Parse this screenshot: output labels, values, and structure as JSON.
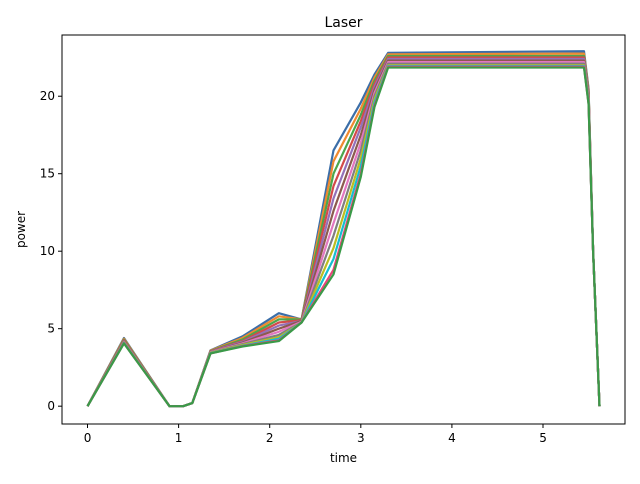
{
  "chart_data": {
    "type": "line",
    "title": "Laser",
    "xlabel": "time",
    "ylabel": "power",
    "xlim": [
      -0.28,
      5.9
    ],
    "ylim": [
      -1.15,
      23.95
    ],
    "xticks": [
      0,
      1,
      2,
      3,
      4,
      5
    ],
    "yticks": [
      0,
      5,
      10,
      15,
      20
    ],
    "grid": false,
    "legend": "none",
    "x": [
      0,
      0.4,
      0.9,
      1.05,
      1.15,
      1.35,
      1.7,
      2.1,
      2.35,
      2.7,
      3.0,
      3.15,
      3.3,
      5.45,
      5.5,
      5.55,
      5.62
    ],
    "series": [
      {
        "color": "#3b6ea8",
        "values": [
          0,
          4.4,
          0,
          0,
          0.2,
          3.6,
          4.5,
          6.0,
          5.6,
          16.5,
          19.6,
          21.4,
          22.8,
          22.9,
          20.5,
          10.0,
          0
        ]
      },
      {
        "color": "#ef8a30",
        "values": [
          0,
          4.35,
          0,
          0,
          0.2,
          3.58,
          4.4,
          5.8,
          5.6,
          15.8,
          19.2,
          21.2,
          22.7,
          22.75,
          20.4,
          10.0,
          0
        ]
      },
      {
        "color": "#4ca64c",
        "values": [
          0,
          4.3,
          0,
          0,
          0.2,
          3.56,
          4.3,
          5.6,
          5.6,
          15.0,
          18.8,
          21.0,
          22.6,
          22.6,
          20.3,
          10.0,
          0
        ]
      },
      {
        "color": "#d34a4a",
        "values": [
          0,
          4.25,
          0,
          0,
          0.2,
          3.54,
          4.2,
          5.4,
          5.55,
          14.2,
          18.4,
          20.8,
          22.5,
          22.5,
          20.2,
          10.0,
          0
        ]
      },
      {
        "color": "#9470b8",
        "values": [
          0,
          4.2,
          0,
          0,
          0.2,
          3.52,
          4.15,
          5.2,
          5.5,
          13.4,
          18.0,
          20.6,
          22.4,
          22.4,
          20.1,
          10.0,
          0
        ]
      },
      {
        "color": "#8c5a4e",
        "values": [
          0,
          4.18,
          0,
          0,
          0.2,
          3.5,
          4.1,
          5.0,
          5.5,
          12.6,
          17.5,
          20.4,
          22.3,
          22.3,
          20.0,
          10.0,
          0
        ]
      },
      {
        "color": "#e277c0",
        "values": [
          0,
          4.15,
          0,
          0,
          0.2,
          3.48,
          4.05,
          4.8,
          5.45,
          11.8,
          17.0,
          20.2,
          22.2,
          22.2,
          19.9,
          10.0,
          0
        ]
      },
      {
        "color": "#7f7f7f",
        "values": [
          0,
          4.12,
          0,
          0,
          0.2,
          3.46,
          4.0,
          4.6,
          5.4,
          11.0,
          16.5,
          20.0,
          22.1,
          22.1,
          19.8,
          10.0,
          0
        ]
      },
      {
        "color": "#bcbd22",
        "values": [
          0,
          4.1,
          0,
          0,
          0.2,
          3.44,
          3.95,
          4.45,
          5.4,
          10.2,
          16.0,
          19.8,
          22.0,
          22.0,
          19.7,
          10.0,
          0
        ]
      },
      {
        "color": "#17becf",
        "values": [
          0,
          4.08,
          0,
          0,
          0.2,
          3.42,
          3.9,
          4.35,
          5.4,
          9.5,
          15.5,
          19.6,
          21.95,
          21.95,
          19.6,
          10.0,
          0
        ]
      },
      {
        "color": "#e8457a",
        "values": [
          0,
          4.06,
          0,
          0,
          0.2,
          3.4,
          3.88,
          4.25,
          5.4,
          8.8,
          15.0,
          19.4,
          21.9,
          21.9,
          19.5,
          10.0,
          0
        ]
      },
      {
        "color": "#3a9a48",
        "values": [
          0,
          4.05,
          0,
          0,
          0.2,
          3.4,
          3.85,
          4.2,
          5.4,
          8.5,
          14.8,
          19.3,
          21.85,
          21.85,
          19.5,
          10.0,
          0
        ]
      }
    ]
  }
}
